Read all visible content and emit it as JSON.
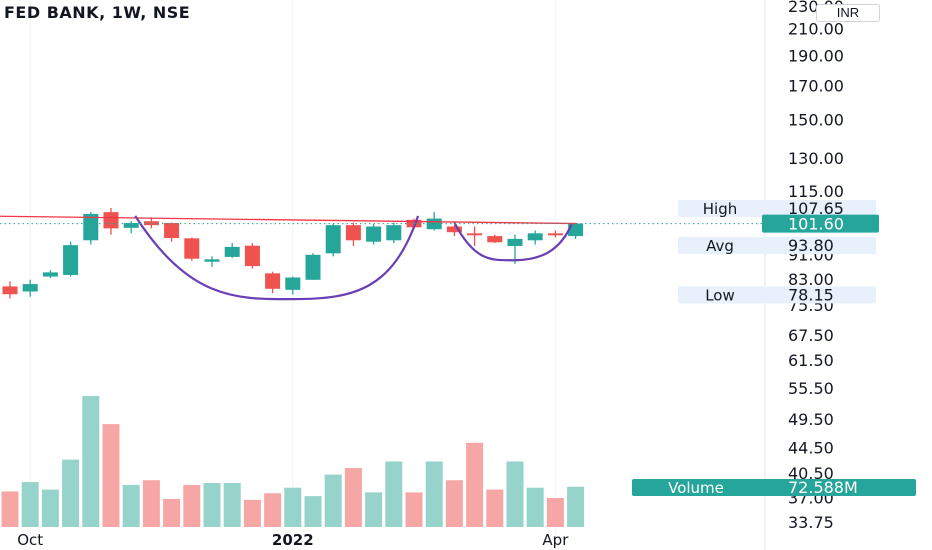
{
  "title": "FED BANK, 1W, NSE",
  "currency": "INR",
  "chart_data": {
    "type": "candlestick",
    "timeframe": "1W",
    "x_labels": [
      {
        "week": 1,
        "label": "Oct",
        "bold": false
      },
      {
        "week": 14,
        "label": "2022",
        "bold": true
      },
      {
        "week": 27,
        "label": "Apr",
        "bold": false
      }
    ],
    "price_axis": {
      "ticks": [
        230.0,
        210.0,
        190.0,
        170.0,
        150.0,
        130.0,
        115.0,
        91.0,
        83.0,
        75.5,
        67.5,
        61.5,
        55.5,
        49.5,
        44.5,
        40.5,
        37.0,
        33.75
      ],
      "tick_labels": [
        "230.00",
        "210.00",
        "190.00",
        "170.00",
        "150.00",
        "130.00",
        "115.00",
        "91.00",
        "83.00",
        "75.50",
        "67.50",
        "61.50",
        "55.50",
        "49.50",
        "44.50",
        "40.50",
        "37.00",
        "33.75"
      ],
      "scale": "log"
    },
    "stats": [
      {
        "label": "High",
        "value": "107.65",
        "price": 107.65,
        "color": "#e8f0fc",
        "text": "#131722"
      },
      {
        "label": "Avg",
        "value": "93.80",
        "price": 93.8,
        "color": "#e8f0fc",
        "text": "#131722"
      },
      {
        "label": "Low",
        "value": "78.15",
        "price": 78.15,
        "color": "#e8f0fc",
        "text": "#131722"
      }
    ],
    "last_price": {
      "value": "101.60",
      "price": 101.6,
      "color": "#26a69a"
    },
    "volume_label": {
      "label": "Volume",
      "value": "72.588M",
      "color": "#26a69a"
    },
    "resistance_line": {
      "from": [
        -1.5,
        104.5
      ],
      "to": [
        28.1,
        101.6
      ],
      "color": "#f23645"
    },
    "cup_handle": [
      {
        "from": [
          6.2,
          104.5
        ],
        "bottom": [
          14.0,
          76.8
        ],
        "to": [
          20.2,
          104.5
        ]
      },
      {
        "from": [
          22.0,
          102.0
        ],
        "bottom": [
          24.9,
          88.7
        ],
        "to": [
          27.8,
          101.2
        ]
      }
    ],
    "candles": [
      {
        "o": 80.5,
        "h": 82.0,
        "l": 77.0,
        "c": 78.2,
        "v": 38
      },
      {
        "o": 79.0,
        "h": 82.5,
        "l": 77.5,
        "c": 81.2,
        "v": 48
      },
      {
        "o": 83.5,
        "h": 85.5,
        "l": 83.0,
        "c": 84.8,
        "v": 40
      },
      {
        "o": 84.0,
        "h": 95.0,
        "l": 83.5,
        "c": 93.8,
        "v": 72
      },
      {
        "o": 95.5,
        "h": 106.0,
        "l": 94.0,
        "c": 105.3,
        "v": 140
      },
      {
        "o": 106.0,
        "h": 107.65,
        "l": 97.5,
        "c": 99.8,
        "v": 110
      },
      {
        "o": 100.0,
        "h": 102.5,
        "l": 98.0,
        "c": 101.8,
        "v": 45
      },
      {
        "o": 102.5,
        "h": 104.0,
        "l": 99.8,
        "c": 101.0,
        "v": 50
      },
      {
        "o": 101.8,
        "h": 102.0,
        "l": 95.0,
        "c": 96.3,
        "v": 30
      },
      {
        "o": 96.2,
        "h": 96.5,
        "l": 88.5,
        "c": 89.2,
        "v": 45
      },
      {
        "o": 88.2,
        "h": 90.0,
        "l": 86.5,
        "c": 89.0,
        "v": 47
      },
      {
        "o": 89.8,
        "h": 94.5,
        "l": 89.5,
        "c": 93.2,
        "v": 47
      },
      {
        "o": 93.6,
        "h": 94.5,
        "l": 86.0,
        "c": 86.8,
        "v": 29
      },
      {
        "o": 84.5,
        "h": 85.0,
        "l": 78.5,
        "c": 79.8,
        "v": 36
      },
      {
        "o": 79.5,
        "h": 83.5,
        "l": 78.15,
        "c": 83.2,
        "v": 42
      },
      {
        "o": 82.5,
        "h": 91.0,
        "l": 82.5,
        "c": 90.5,
        "v": 33
      },
      {
        "o": 91.0,
        "h": 101.5,
        "l": 90.0,
        "c": 101.0,
        "v": 56
      },
      {
        "o": 101.0,
        "h": 102.0,
        "l": 93.5,
        "c": 95.5,
        "v": 63
      },
      {
        "o": 95.0,
        "h": 101.5,
        "l": 94.0,
        "c": 100.5,
        "v": 37
      },
      {
        "o": 95.5,
        "h": 102.0,
        "l": 94.5,
        "c": 101.0,
        "v": 70
      },
      {
        "o": 103.0,
        "h": 103.5,
        "l": 99.5,
        "c": 100.2,
        "v": 37
      },
      {
        "o": 99.5,
        "h": 106.0,
        "l": 99.0,
        "c": 103.5,
        "v": 70
      },
      {
        "o": 100.5,
        "h": 101.0,
        "l": 97.0,
        "c": 98.4,
        "v": 50
      },
      {
        "o": 98.0,
        "h": 100.5,
        "l": 93.5,
        "c": 97.5,
        "v": 90
      },
      {
        "o": 97.0,
        "h": 97.5,
        "l": 94.5,
        "c": 94.8,
        "v": 40
      },
      {
        "o": 93.5,
        "h": 97.5,
        "l": 87.5,
        "c": 96.0,
        "v": 70
      },
      {
        "o": 95.5,
        "h": 99.0,
        "l": 94.0,
        "c": 98.0,
        "v": 42
      },
      {
        "o": 98.0,
        "h": 99.0,
        "l": 96.5,
        "c": 97.5,
        "v": 31
      },
      {
        "o": 97.0,
        "h": 101.8,
        "l": 96.0,
        "c": 101.6,
        "v": 43
      }
    ]
  }
}
